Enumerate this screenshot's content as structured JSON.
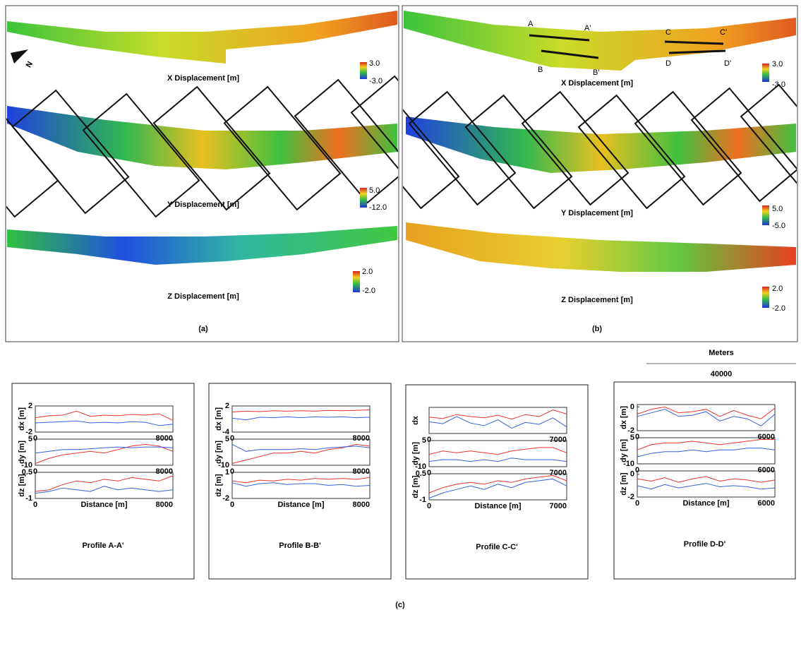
{
  "panel_a": {
    "x": {
      "title": "X Displacement [m]",
      "max": "3.0",
      "min": "-3.0"
    },
    "y": {
      "title": "Y Displacement [m]",
      "max": "5.0",
      "min": "-12.0"
    },
    "z": {
      "title": "Z Displacement [m]",
      "max": "2.0",
      "min": "-2.0"
    },
    "north": "N",
    "label": "(a)"
  },
  "panel_b": {
    "x": {
      "title": "X Displacement [m]",
      "max": "3.0",
      "min": "-3.0"
    },
    "y": {
      "title": "Y Displacement [m]",
      "max": "5.0",
      "min": "-5.0"
    },
    "z": {
      "title": "Z Displacement [m]",
      "max": "2.0",
      "min": "-2.0"
    },
    "profile_points": [
      "A",
      "A'",
      "B",
      "B'",
      "C",
      "C'",
      "D",
      "D'"
    ],
    "label": "(b)"
  },
  "scale_bar": {
    "title": "Meters",
    "length": 40000
  },
  "panel_c_label": "(c)",
  "profiles": [
    {
      "title": "Profile A-A'",
      "xlabel": "Distance [m]",
      "xlim": [
        0,
        8000
      ],
      "xticks": [
        0,
        8000
      ],
      "x": [
        0,
        800,
        1600,
        2400,
        3200,
        4000,
        4800,
        5600,
        6400,
        7200,
        8000
      ],
      "plots": [
        {
          "type": "line",
          "ylabel": "dx [m]",
          "ylim": [
            -2,
            2
          ],
          "yticks": [
            -2,
            2
          ],
          "series": [
            {
              "color": "#e8332f",
              "values": [
                0.2,
                0.5,
                0.6,
                1.2,
                0.4,
                0.6,
                0.5,
                0.7,
                0.6,
                0.8,
                -0.2
              ]
            },
            {
              "color": "#3a5fe0",
              "values": [
                -0.6,
                -0.5,
                -0.4,
                -0.3,
                -0.6,
                -0.5,
                -0.6,
                -0.4,
                -0.5,
                -1.0,
                -0.8
              ]
            }
          ]
        },
        {
          "type": "line",
          "ylabel": "dy [m]",
          "ylim": [
            -10,
            5
          ],
          "yticks": [
            -10,
            5
          ],
          "series": [
            {
              "color": "#e8332f",
              "values": [
                -9,
                -6,
                -4,
                -3,
                -2,
                -3,
                -1,
                1,
                2,
                1,
                -2
              ]
            },
            {
              "color": "#3a5fe0",
              "values": [
                -3,
                -2,
                -1,
                -1,
                -0.5,
                0,
                0.5,
                0,
                0.5,
                0.5,
                0
              ]
            }
          ]
        },
        {
          "type": "line",
          "ylabel": "dz [m]",
          "ylim": [
            -1,
            0.5
          ],
          "yticks": [
            -1,
            0.5
          ],
          "series": [
            {
              "color": "#e8332f",
              "values": [
                -0.6,
                -0.5,
                -0.2,
                0,
                -0.1,
                0.1,
                0,
                0.2,
                0.1,
                0,
                0.3
              ]
            },
            {
              "color": "#3a5fe0",
              "values": [
                -0.7,
                -0.6,
                -0.4,
                -0.5,
                -0.6,
                -0.3,
                -0.5,
                -0.4,
                -0.5,
                -0.6,
                -0.5
              ]
            }
          ]
        }
      ]
    },
    {
      "title": "Profile B-B'",
      "xlabel": "Distance [m]",
      "xlim": [
        0,
        8000
      ],
      "xticks": [
        0,
        8000
      ],
      "x": [
        0,
        800,
        1600,
        2400,
        3200,
        4000,
        4800,
        5600,
        6400,
        7200,
        8000
      ],
      "plots": [
        {
          "type": "line",
          "ylabel": "dx [m]",
          "ylim": [
            -4,
            2
          ],
          "yticks": [
            -4,
            2
          ],
          "series": [
            {
              "color": "#e8332f",
              "values": [
                0.6,
                0.8,
                0.7,
                0.9,
                0.8,
                0.9,
                0.8,
                1.0,
                0.9,
                1.0,
                1.1
              ]
            },
            {
              "color": "#3a5fe0",
              "values": [
                -0.8,
                -1.2,
                -0.6,
                -0.7,
                -0.5,
                -0.7,
                -0.5,
                -0.6,
                -0.5,
                -0.7,
                -0.6
              ]
            }
          ]
        },
        {
          "type": "line",
          "ylabel": "dy [m]",
          "ylim": [
            -10,
            5
          ],
          "yticks": [
            -10,
            5
          ],
          "series": [
            {
              "color": "#e8332f",
              "values": [
                -9,
                -7,
                -5,
                -3,
                -3,
                -2,
                -3,
                -1,
                0,
                2,
                1
              ]
            },
            {
              "color": "#3a5fe0",
              "values": [
                2,
                -2,
                -1,
                -1,
                -1,
                -0.5,
                -1,
                0,
                0.5,
                1,
                0
              ]
            }
          ]
        },
        {
          "type": "line",
          "ylabel": "dz [m]",
          "ylim": [
            -2,
            1
          ],
          "yticks": [
            -2,
            1
          ],
          "series": [
            {
              "color": "#e8332f",
              "values": [
                0,
                -0.2,
                0.1,
                0,
                0.2,
                0.1,
                0.3,
                0.2,
                0.3,
                0.2,
                0.4
              ]
            },
            {
              "color": "#3a5fe0",
              "values": [
                -0.2,
                -0.6,
                -0.3,
                -0.2,
                -0.4,
                -0.3,
                -0.3,
                -0.5,
                -0.4,
                -0.6,
                -0.5
              ]
            }
          ]
        }
      ]
    },
    {
      "title": "Profile  C-C'",
      "xlabel": "Distance [m]",
      "xlim": [
        0,
        7000
      ],
      "xticks": [
        0,
        7000
      ],
      "x": [
        0,
        700,
        1400,
        2100,
        2800,
        3500,
        4200,
        4900,
        5600,
        6300,
        7000
      ],
      "plots": [
        {
          "type": "line",
          "ylabel": "dx",
          "ylim": [
            -2,
            2
          ],
          "yticks": [],
          "series": [
            {
              "color": "#e8332f",
              "values": [
                0.5,
                0.3,
                0.9,
                0.6,
                0.4,
                0.8,
                0.2,
                0.9,
                0.6,
                1.6,
                1.0
              ]
            },
            {
              "color": "#3a5fe0",
              "values": [
                -0.2,
                -0.5,
                0.6,
                -0.4,
                -0.8,
                0.1,
                -1.2,
                -0.3,
                -0.6,
                0.4,
                -1.0
              ]
            }
          ]
        },
        {
          "type": "line",
          "ylabel": "dy [m]",
          "ylim": [
            -10,
            5
          ],
          "yticks": [
            -10,
            5
          ],
          "series": [
            {
              "color": "#e8332f",
              "values": [
                -3,
                -1,
                -2,
                -1,
                -2,
                -3,
                -1,
                0,
                1,
                1,
                -2
              ]
            },
            {
              "color": "#3a5fe0",
              "values": [
                -7,
                -6,
                -6,
                -7,
                -6,
                -7,
                -5,
                -6,
                -6,
                -6,
                -7
              ]
            }
          ]
        },
        {
          "type": "line",
          "ylabel": "dz [m]",
          "ylim": [
            -1,
            0.5
          ],
          "yticks": [
            -1,
            0.5
          ],
          "series": [
            {
              "color": "#e8332f",
              "values": [
                -0.6,
                -0.3,
                -0.1,
                0,
                -0.1,
                0.1,
                0,
                0.2,
                0.3,
                0.4,
                0.1
              ]
            },
            {
              "color": "#3a5fe0",
              "values": [
                -0.9,
                -0.6,
                -0.4,
                -0.2,
                -0.4,
                -0.1,
                -0.3,
                0,
                0.1,
                0.2,
                -0.2
              ]
            }
          ]
        }
      ]
    },
    {
      "title": "Profile D-D'",
      "xlabel": "Distance [m]",
      "xlim": [
        0,
        6000
      ],
      "xticks": [
        0,
        6000
      ],
      "x": [
        0,
        600,
        1200,
        1800,
        2400,
        3000,
        3600,
        4200,
        4800,
        5400,
        6000
      ],
      "plots": [
        {
          "type": "line",
          "ylabel": "dx [m]",
          "ylim": [
            -2,
            0.2
          ],
          "yticks": [
            -2,
            0
          ],
          "series": [
            {
              "color": "#e8332f",
              "values": [
                -0.6,
                -0.2,
                0,
                -0.5,
                -0.4,
                -0.2,
                -0.8,
                -0.3,
                -0.7,
                -1,
                -0.1
              ]
            },
            {
              "color": "#3a5fe0",
              "values": [
                -0.8,
                -0.5,
                -0.2,
                -0.8,
                -0.7,
                -0.4,
                -1.2,
                -0.8,
                -1.0,
                -1.6,
                -0.6
              ]
            }
          ]
        },
        {
          "type": "line",
          "ylabel": "dy [m]",
          "ylim": [
            -10,
            5
          ],
          "yticks": [
            -10,
            5
          ],
          "series": [
            {
              "color": "#e8332f",
              "values": [
                -2,
                1,
                2,
                2,
                3,
                2,
                1,
                2,
                3,
                4,
                4
              ]
            },
            {
              "color": "#3a5fe0",
              "values": [
                -6,
                -4,
                -3,
                -3,
                -2,
                -3,
                -2,
                -2,
                -1,
                -1,
                -2
              ]
            }
          ]
        },
        {
          "type": "line",
          "ylabel": "dz [m]",
          "ylim": [
            -2,
            0.3
          ],
          "yticks": [
            -2,
            0
          ],
          "series": [
            {
              "color": "#e8332f",
              "values": [
                -0.4,
                -0.6,
                -0.3,
                -0.7,
                -0.4,
                -0.2,
                -0.6,
                -0.4,
                -0.5,
                -0.7,
                -0.5
              ]
            },
            {
              "color": "#3a5fe0",
              "values": [
                -1.0,
                -1.3,
                -0.9,
                -1.2,
                -1.0,
                -0.8,
                -1.1,
                -1.0,
                -1.1,
                -1.3,
                -1.2
              ]
            }
          ]
        }
      ]
    }
  ]
}
